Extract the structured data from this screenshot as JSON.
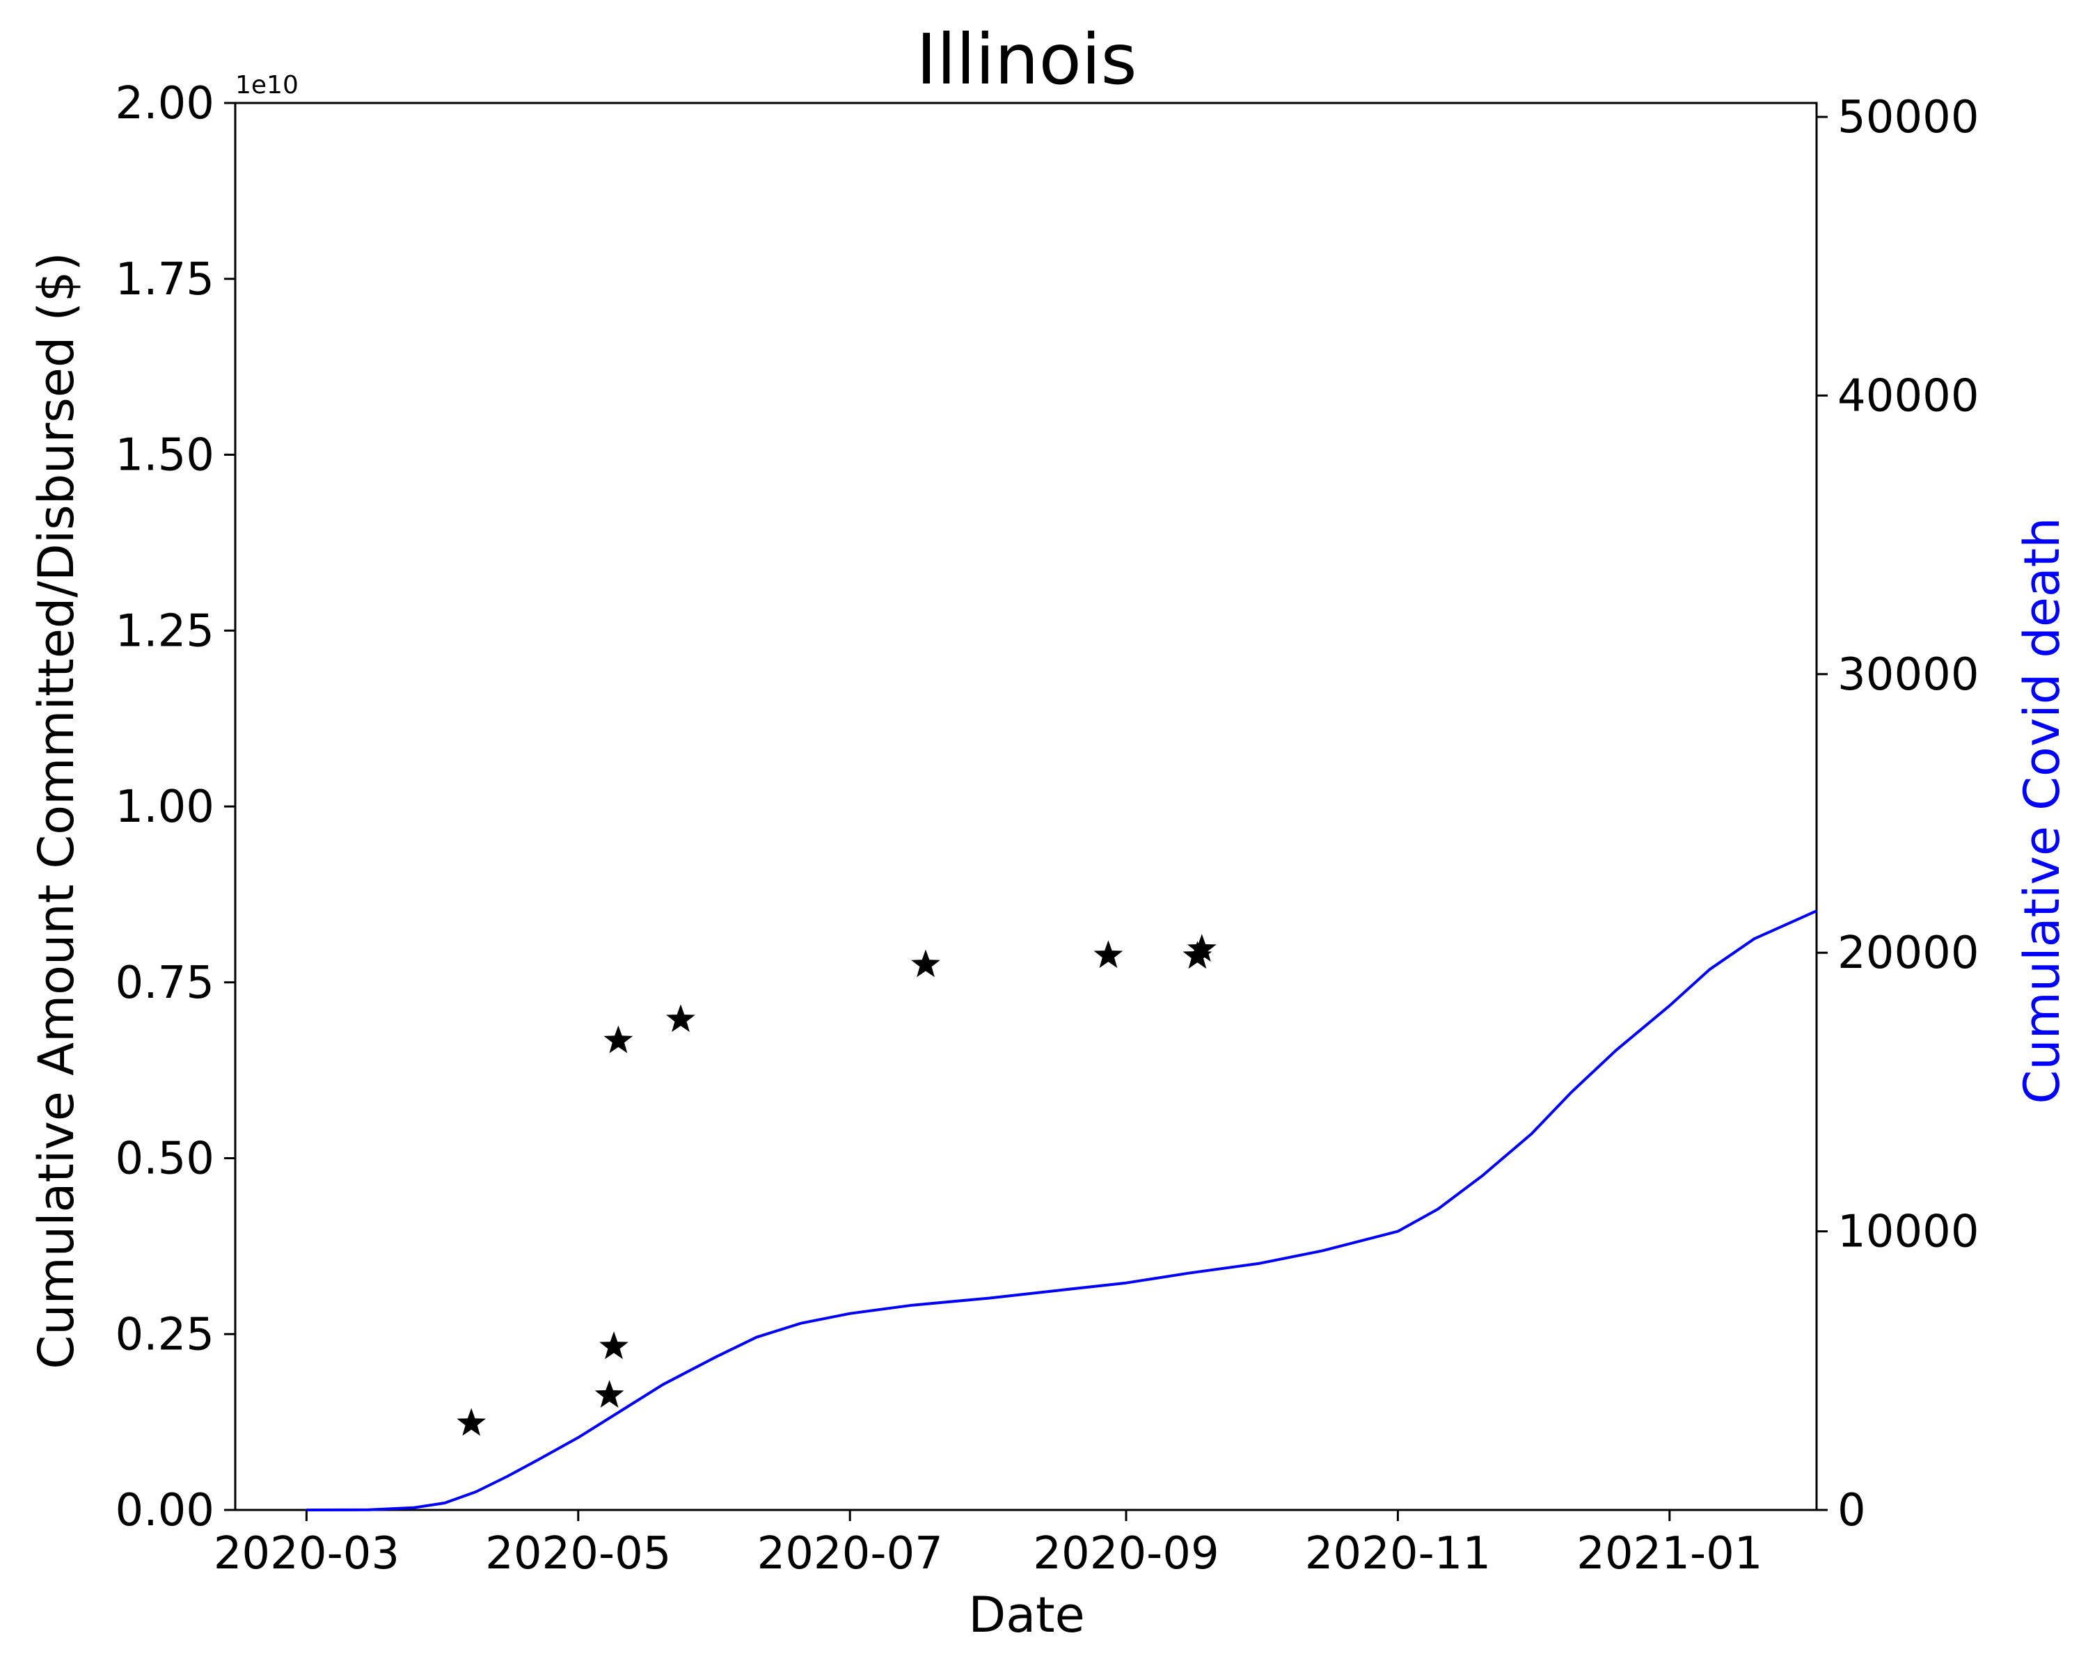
{
  "chart_data": {
    "type": "line",
    "title": "Illinois",
    "xlabel": "Date",
    "x_ticks": [
      "2020-03",
      "2020-05",
      "2020-07",
      "2020-09",
      "2020-11",
      "2021-01"
    ],
    "xlim": [
      "2020-02-14",
      "2021-02-03"
    ],
    "left_axis": {
      "label": "Cumulative Amount Committed/Disbursed ($)",
      "offset_text": "1e10",
      "ylim": [
        0,
        2.0
      ],
      "ticks": [
        "0.00",
        "0.25",
        "0.50",
        "0.75",
        "1.00",
        "1.25",
        "1.50",
        "1.75",
        "2.00"
      ]
    },
    "right_axis": {
      "label": "Cumulative Covid death",
      "label_color": "#0000ff",
      "ylim": [
        0,
        50500
      ],
      "ticks": [
        "0",
        "10000",
        "20000",
        "30000",
        "40000",
        "50000"
      ]
    },
    "series": [
      {
        "type": "scatter",
        "marker": "star",
        "color": "#000000",
        "axis": "left",
        "points": [
          {
            "x": "2020-04-07",
            "y": 0.123
          },
          {
            "x": "2020-05-08",
            "y": 0.163
          },
          {
            "x": "2020-05-09",
            "y": 0.232
          },
          {
            "x": "2020-05-10",
            "y": 0.667
          },
          {
            "x": "2020-05-24",
            "y": 0.697
          },
          {
            "x": "2020-07-18",
            "y": 0.775
          },
          {
            "x": "2020-08-28",
            "y": 0.788
          },
          {
            "x": "2020-09-17",
            "y": 0.787
          },
          {
            "x": "2020-09-18",
            "y": 0.797
          }
        ]
      },
      {
        "type": "line",
        "color": "#0000ff",
        "axis": "right",
        "points": [
          {
            "x": "2020-03-01",
            "y": 0
          },
          {
            "x": "2020-03-15",
            "y": 5
          },
          {
            "x": "2020-03-25",
            "y": 80
          },
          {
            "x": "2020-04-01",
            "y": 250
          },
          {
            "x": "2020-04-08",
            "y": 650
          },
          {
            "x": "2020-04-15",
            "y": 1200
          },
          {
            "x": "2020-04-22",
            "y": 1800
          },
          {
            "x": "2020-05-01",
            "y": 2600
          },
          {
            "x": "2020-05-10",
            "y": 3500
          },
          {
            "x": "2020-05-20",
            "y": 4500
          },
          {
            "x": "2020-06-01",
            "y": 5500
          },
          {
            "x": "2020-06-10",
            "y": 6200
          },
          {
            "x": "2020-06-20",
            "y": 6700
          },
          {
            "x": "2020-07-01",
            "y": 7050
          },
          {
            "x": "2020-07-15",
            "y": 7350
          },
          {
            "x": "2020-08-01",
            "y": 7600
          },
          {
            "x": "2020-08-15",
            "y": 7850
          },
          {
            "x": "2020-09-01",
            "y": 8150
          },
          {
            "x": "2020-09-15",
            "y": 8500
          },
          {
            "x": "2020-10-01",
            "y": 8850
          },
          {
            "x": "2020-10-15",
            "y": 9300
          },
          {
            "x": "2020-11-01",
            "y": 10000
          },
          {
            "x": "2020-11-10",
            "y": 10800
          },
          {
            "x": "2020-11-20",
            "y": 12000
          },
          {
            "x": "2020-12-01",
            "y": 13500
          },
          {
            "x": "2020-12-10",
            "y": 15000
          },
          {
            "x": "2020-12-20",
            "y": 16500
          },
          {
            "x": "2021-01-01",
            "y": 18100
          },
          {
            "x": "2021-01-10",
            "y": 19400
          },
          {
            "x": "2021-01-20",
            "y": 20500
          },
          {
            "x": "2021-02-03",
            "y": 21500
          }
        ]
      }
    ]
  }
}
